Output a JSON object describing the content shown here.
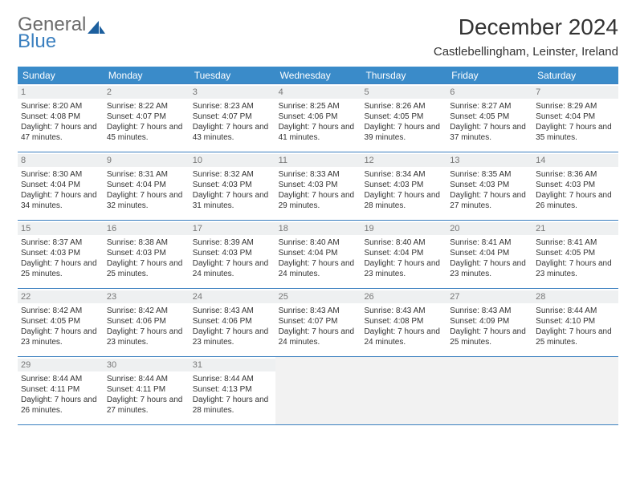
{
  "logo": {
    "word1": "General",
    "word2": "Blue"
  },
  "title": "December 2024",
  "location": "Castlebellingham, Leinster, Ireland",
  "day_names": [
    "Sunday",
    "Monday",
    "Tuesday",
    "Wednesday",
    "Thursday",
    "Friday",
    "Saturday"
  ],
  "colors": {
    "header_bg": "#3a8bc9",
    "border": "#3a7fbf",
    "daynum_bg": "#eef0f1",
    "empty_bg": "#f2f2f2",
    "text": "#333333"
  },
  "weeks": [
    [
      {
        "n": "1",
        "sr": "Sunrise: 8:20 AM",
        "ss": "Sunset: 4:08 PM",
        "dl": "Daylight: 7 hours and 47 minutes."
      },
      {
        "n": "2",
        "sr": "Sunrise: 8:22 AM",
        "ss": "Sunset: 4:07 PM",
        "dl": "Daylight: 7 hours and 45 minutes."
      },
      {
        "n": "3",
        "sr": "Sunrise: 8:23 AM",
        "ss": "Sunset: 4:07 PM",
        "dl": "Daylight: 7 hours and 43 minutes."
      },
      {
        "n": "4",
        "sr": "Sunrise: 8:25 AM",
        "ss": "Sunset: 4:06 PM",
        "dl": "Daylight: 7 hours and 41 minutes."
      },
      {
        "n": "5",
        "sr": "Sunrise: 8:26 AM",
        "ss": "Sunset: 4:05 PM",
        "dl": "Daylight: 7 hours and 39 minutes."
      },
      {
        "n": "6",
        "sr": "Sunrise: 8:27 AM",
        "ss": "Sunset: 4:05 PM",
        "dl": "Daylight: 7 hours and 37 minutes."
      },
      {
        "n": "7",
        "sr": "Sunrise: 8:29 AM",
        "ss": "Sunset: 4:04 PM",
        "dl": "Daylight: 7 hours and 35 minutes."
      }
    ],
    [
      {
        "n": "8",
        "sr": "Sunrise: 8:30 AM",
        "ss": "Sunset: 4:04 PM",
        "dl": "Daylight: 7 hours and 34 minutes."
      },
      {
        "n": "9",
        "sr": "Sunrise: 8:31 AM",
        "ss": "Sunset: 4:04 PM",
        "dl": "Daylight: 7 hours and 32 minutes."
      },
      {
        "n": "10",
        "sr": "Sunrise: 8:32 AM",
        "ss": "Sunset: 4:03 PM",
        "dl": "Daylight: 7 hours and 31 minutes."
      },
      {
        "n": "11",
        "sr": "Sunrise: 8:33 AM",
        "ss": "Sunset: 4:03 PM",
        "dl": "Daylight: 7 hours and 29 minutes."
      },
      {
        "n": "12",
        "sr": "Sunrise: 8:34 AM",
        "ss": "Sunset: 4:03 PM",
        "dl": "Daylight: 7 hours and 28 minutes."
      },
      {
        "n": "13",
        "sr": "Sunrise: 8:35 AM",
        "ss": "Sunset: 4:03 PM",
        "dl": "Daylight: 7 hours and 27 minutes."
      },
      {
        "n": "14",
        "sr": "Sunrise: 8:36 AM",
        "ss": "Sunset: 4:03 PM",
        "dl": "Daylight: 7 hours and 26 minutes."
      }
    ],
    [
      {
        "n": "15",
        "sr": "Sunrise: 8:37 AM",
        "ss": "Sunset: 4:03 PM",
        "dl": "Daylight: 7 hours and 25 minutes."
      },
      {
        "n": "16",
        "sr": "Sunrise: 8:38 AM",
        "ss": "Sunset: 4:03 PM",
        "dl": "Daylight: 7 hours and 25 minutes."
      },
      {
        "n": "17",
        "sr": "Sunrise: 8:39 AM",
        "ss": "Sunset: 4:03 PM",
        "dl": "Daylight: 7 hours and 24 minutes."
      },
      {
        "n": "18",
        "sr": "Sunrise: 8:40 AM",
        "ss": "Sunset: 4:04 PM",
        "dl": "Daylight: 7 hours and 24 minutes."
      },
      {
        "n": "19",
        "sr": "Sunrise: 8:40 AM",
        "ss": "Sunset: 4:04 PM",
        "dl": "Daylight: 7 hours and 23 minutes."
      },
      {
        "n": "20",
        "sr": "Sunrise: 8:41 AM",
        "ss": "Sunset: 4:04 PM",
        "dl": "Daylight: 7 hours and 23 minutes."
      },
      {
        "n": "21",
        "sr": "Sunrise: 8:41 AM",
        "ss": "Sunset: 4:05 PM",
        "dl": "Daylight: 7 hours and 23 minutes."
      }
    ],
    [
      {
        "n": "22",
        "sr": "Sunrise: 8:42 AM",
        "ss": "Sunset: 4:05 PM",
        "dl": "Daylight: 7 hours and 23 minutes."
      },
      {
        "n": "23",
        "sr": "Sunrise: 8:42 AM",
        "ss": "Sunset: 4:06 PM",
        "dl": "Daylight: 7 hours and 23 minutes."
      },
      {
        "n": "24",
        "sr": "Sunrise: 8:43 AM",
        "ss": "Sunset: 4:06 PM",
        "dl": "Daylight: 7 hours and 23 minutes."
      },
      {
        "n": "25",
        "sr": "Sunrise: 8:43 AM",
        "ss": "Sunset: 4:07 PM",
        "dl": "Daylight: 7 hours and 24 minutes."
      },
      {
        "n": "26",
        "sr": "Sunrise: 8:43 AM",
        "ss": "Sunset: 4:08 PM",
        "dl": "Daylight: 7 hours and 24 minutes."
      },
      {
        "n": "27",
        "sr": "Sunrise: 8:43 AM",
        "ss": "Sunset: 4:09 PM",
        "dl": "Daylight: 7 hours and 25 minutes."
      },
      {
        "n": "28",
        "sr": "Sunrise: 8:44 AM",
        "ss": "Sunset: 4:10 PM",
        "dl": "Daylight: 7 hours and 25 minutes."
      }
    ],
    [
      {
        "n": "29",
        "sr": "Sunrise: 8:44 AM",
        "ss": "Sunset: 4:11 PM",
        "dl": "Daylight: 7 hours and 26 minutes."
      },
      {
        "n": "30",
        "sr": "Sunrise: 8:44 AM",
        "ss": "Sunset: 4:11 PM",
        "dl": "Daylight: 7 hours and 27 minutes."
      },
      {
        "n": "31",
        "sr": "Sunrise: 8:44 AM",
        "ss": "Sunset: 4:13 PM",
        "dl": "Daylight: 7 hours and 28 minutes."
      },
      {
        "empty": true
      },
      {
        "empty": true
      },
      {
        "empty": true
      },
      {
        "empty": true
      }
    ]
  ]
}
